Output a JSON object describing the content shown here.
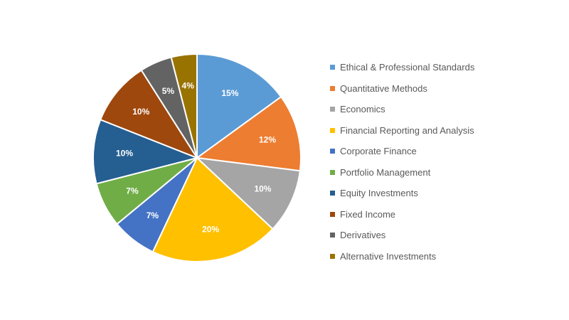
{
  "chart_data": {
    "type": "pie",
    "categories": [
      "Ethical & Professional Standards",
      "Quantitative Methods",
      "Economics",
      "Financial Reporting and Analysis",
      "Corporate Finance",
      "Portfolio Management",
      "Equity Investments",
      "Fixed Income",
      "Derivatives",
      "Alternative Investments"
    ],
    "values": [
      15,
      12,
      10,
      20,
      7,
      7,
      10,
      10,
      5,
      4
    ],
    "data_labels": [
      "15%",
      "12%",
      "10%",
      "20%",
      "7%",
      "7%",
      "10%",
      "10%",
      "5%",
      "4%"
    ],
    "colors": [
      "#5B9BD5",
      "#ED7D31",
      "#A5A5A5",
      "#FFC000",
      "#4472C4",
      "#70AD47",
      "#255E91",
      "#9E480E",
      "#636363",
      "#997300"
    ],
    "legend": "right"
  }
}
